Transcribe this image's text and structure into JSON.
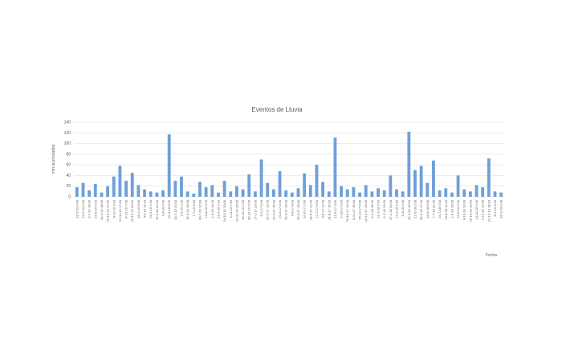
{
  "chart_data": {
    "type": "bar",
    "title": "Eventos de Lluvia",
    "y_label": "mm acumulados",
    "x_label": "Fecha",
    "color": "#6f9fd8",
    "grid": true,
    "ylim": [
      0,
      140
    ],
    "yticks": [
      0,
      20,
      40,
      60,
      80,
      100,
      120,
      140
    ],
    "categories": [
      "31-5-15 6:00",
      "16-6-15 9:00",
      "3-7-15 14:00",
      "22-8-15 5:00",
      "10-9-15 18:00",
      "26-10-15 17:00",
      "8-11-15 3:00",
      "21-11-15 17:00",
      "8-12-15 7:00",
      "29-12-15 20:00",
      "18-1-16 8:00",
      "4-2-16 11:00",
      "29-2-16 1:00",
      "19-3-16 21:00",
      "4-4-16 9:00",
      "20-4-16 8:00",
      "10-5-16 22:00",
      "1-6-16 2:00",
      "19-6-16 16:00",
      "7-7-16 4:00",
      "30-7-16 12:00",
      "13-8-16 5:00",
      "2-9-16 14:00",
      "21-9-16 3:00",
      "14-10-16 20:00",
      "2-11-16 7:00",
      "23-11-16 16:00",
      "10-12-16 1:00",
      "30-12-16 9:00",
      "17-1-17 23:00",
      "5-2-17 6:00",
      "22-2-17 10:00",
      "12-3-17 15:00",
      "29-3-17 4:00",
      "15-4-17 19:00",
      "4-5-17 8:00",
      "23-5-17 13:00",
      "10-6-17 2:00",
      "28-6-17 21:00",
      "17-7-17 6:00",
      "5-8-17 11:00",
      "24-8-17 16:00",
      "12-9-17 3:00",
      "1-10-17 9:00",
      "20-10-17 14:00",
      "8-11-17 19:00",
      "26-11-17 6:00",
      "15-12-17 10:00",
      "3-1-18 18:00",
      "21-1-18 5:00",
      "9-2-18 12:00",
      "27-2-18 20:00",
      "17-3-18 4:00",
      "5-4-18 9:00",
      "23-4-18 13:00",
      "12-5-18 2:00",
      "30-5-18 17:00",
      "18-6-18 8:00",
      "7-7-18 22:00",
      "25-7-18 3:00",
      "13-8-18 11:00",
      "1-9-18 16:00",
      "19-9-18 6:00",
      "8-10-18 10:00",
      "26-10-18 19:00",
      "14-11-18 2:00",
      "3-12-18 12:00",
      "21-12-18 18:00",
      "8-1-19 4:00",
      "16-1-19 9:00"
    ],
    "values": [
      18,
      26,
      12,
      24,
      8,
      20,
      38,
      58,
      30,
      45,
      22,
      14,
      10,
      8,
      12,
      117,
      30,
      38,
      10,
      6,
      28,
      18,
      22,
      8,
      30,
      10,
      20,
      14,
      42,
      10,
      70,
      26,
      14,
      48,
      12,
      8,
      16,
      44,
      22,
      60,
      28,
      10,
      111,
      20,
      14,
      18,
      8,
      22,
      10,
      16,
      12,
      40,
      14,
      10,
      122,
      50,
      58,
      26,
      68,
      12,
      16,
      8,
      40,
      14,
      10,
      22,
      18,
      72,
      10,
      8
    ]
  }
}
